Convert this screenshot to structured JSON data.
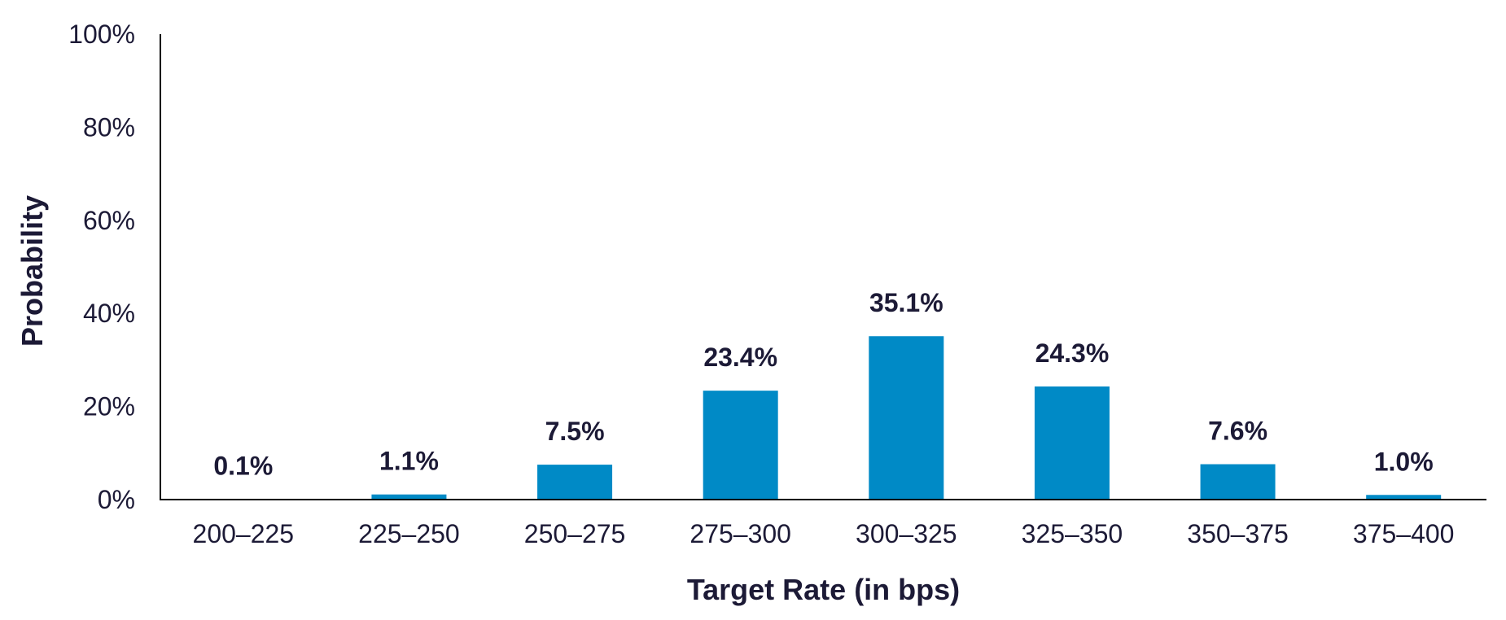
{
  "chart_data": {
    "type": "bar",
    "title": "",
    "xlabel": "Target Rate (in bps)",
    "ylabel": "Probability",
    "categories": [
      "200–225",
      "225–250",
      "250–275",
      "275–300",
      "300–325",
      "325–350",
      "350–375",
      "375–400"
    ],
    "values": [
      0.1,
      1.1,
      7.5,
      23.4,
      35.1,
      24.3,
      7.6,
      1.0
    ],
    "data_labels": [
      "0.1%",
      "1.1%",
      "7.5%",
      "23.4%",
      "35.1%",
      "24.3%",
      "7.6%",
      "1.0%"
    ],
    "yticks": [
      0,
      20,
      40,
      60,
      80,
      100
    ],
    "ytick_labels": [
      "0%",
      "20%",
      "40%",
      "60%",
      "80%",
      "100%"
    ],
    "ylim": [
      0,
      100
    ],
    "grid": false,
    "legend": "none",
    "bar_color": "#008ac6",
    "text_color": "#1c1a36"
  }
}
